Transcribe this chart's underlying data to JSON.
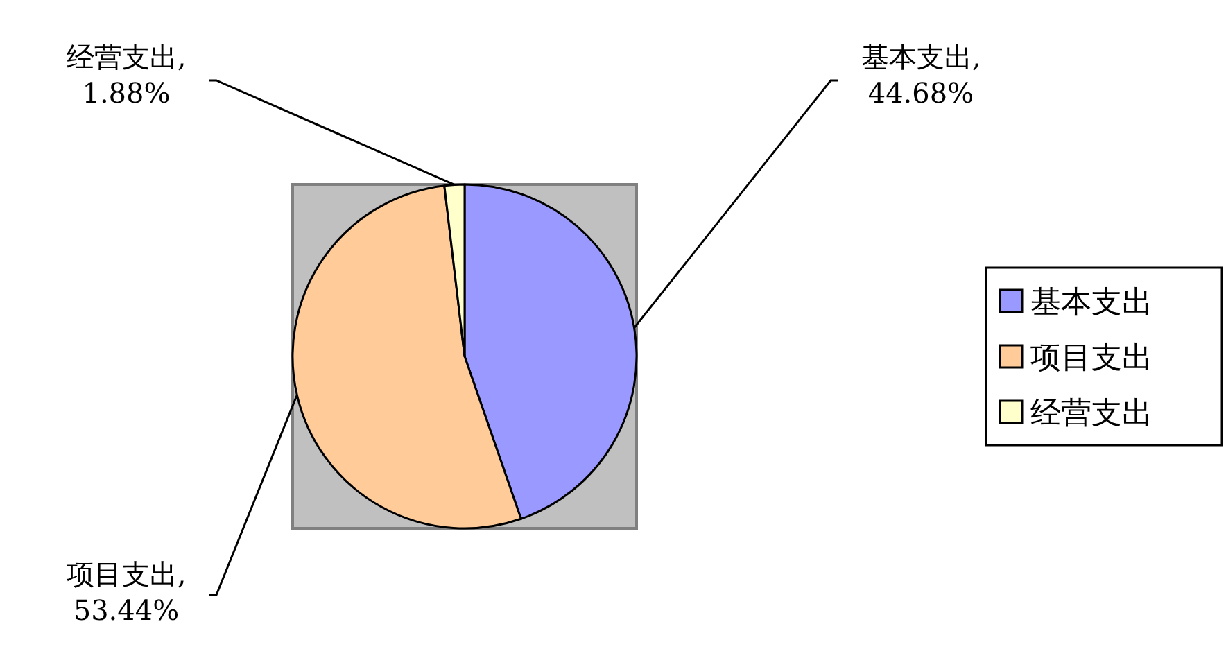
{
  "chart_data": {
    "type": "pie",
    "categories": [
      "基本支出",
      "项目支出",
      "经营支出"
    ],
    "values": [
      44.68,
      53.44,
      1.88
    ],
    "colors": [
      "#9999ff",
      "#ffcc99",
      "#ffffcc"
    ],
    "value_labels": [
      "基本支出,\n44.68%",
      "项目支出,\n53.44%",
      "经营支出,\n1.88%"
    ],
    "legend": "right"
  }
}
